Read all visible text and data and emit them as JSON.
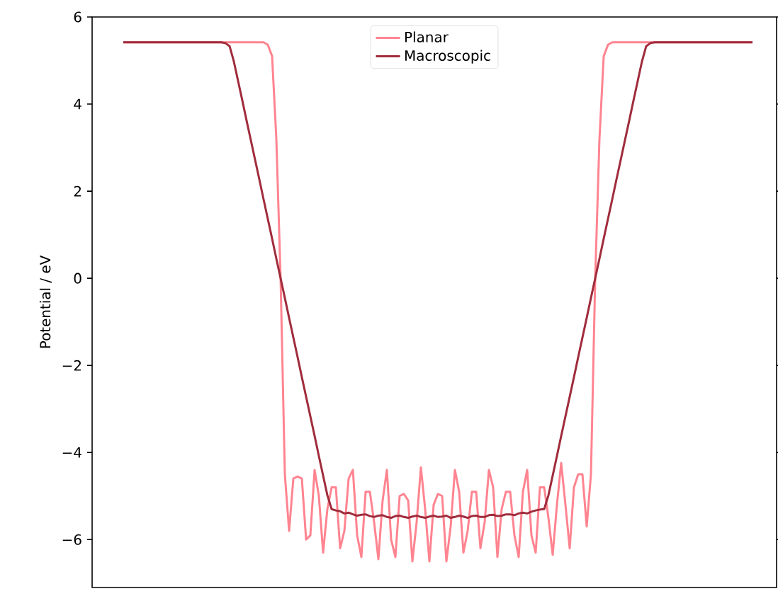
{
  "chart_data": {
    "type": "line",
    "ylabel": "Potential / eV",
    "categories": [
      null,
      null,
      null,
      null,
      null,
      null,
      null,
      null,
      null,
      null,
      null,
      null,
      null,
      null,
      null,
      null,
      null,
      null,
      null,
      null,
      null,
      null,
      null,
      null,
      null,
      null,
      null,
      null,
      null,
      null,
      null,
      null,
      null,
      null,
      null,
      null,
      null,
      null,
      null,
      null,
      null,
      null,
      null,
      null,
      null,
      null,
      null,
      null,
      null,
      null,
      null,
      null,
      null,
      null,
      null,
      null,
      null,
      null,
      null,
      null,
      null,
      null,
      null,
      null,
      null,
      null,
      null,
      null,
      null,
      null,
      null,
      null,
      null,
      null,
      null,
      null,
      null,
      null,
      null,
      null,
      null,
      null,
      null,
      null,
      null,
      null,
      null,
      null,
      null,
      null,
      null,
      null,
      null,
      null,
      null,
      null,
      null,
      null,
      null,
      null,
      null,
      null,
      null,
      null,
      null,
      null,
      null,
      null,
      null,
      null,
      null,
      null,
      null,
      null,
      null,
      null,
      null,
      null,
      null,
      null,
      null,
      null,
      null,
      null,
      null,
      null,
      null,
      null,
      null,
      null,
      null,
      null,
      null,
      null,
      null,
      null,
      null,
      null,
      null,
      null,
      null,
      null,
      null,
      null,
      null,
      null,
      null,
      null,
      null
    ],
    "series": [
      {
        "name": "Planar",
        "color": "#ff8490",
        "values": [
          5.42,
          5.42,
          5.42,
          5.42,
          5.42,
          5.42,
          5.42,
          5.42,
          5.42,
          5.42,
          5.42,
          5.42,
          5.42,
          5.42,
          5.42,
          5.42,
          5.42,
          5.42,
          5.42,
          5.42,
          5.42,
          5.42,
          5.42,
          5.42,
          5.42,
          5.42,
          5.42,
          5.42,
          5.42,
          5.42,
          5.42,
          5.42,
          5.42,
          5.42,
          5.36,
          5.1,
          3.2,
          0.0,
          -4.5,
          -5.8,
          -4.6,
          -4.55,
          -4.6,
          -6.0,
          -5.9,
          -4.4,
          -5.0,
          -6.3,
          -5.3,
          -4.8,
          -4.8,
          -6.2,
          -5.8,
          -4.6,
          -4.4,
          -5.9,
          -6.4,
          -4.9,
          -4.9,
          -5.6,
          -6.45,
          -5.1,
          -4.4,
          -6.0,
          -6.4,
          -5.0,
          -4.95,
          -5.1,
          -6.5,
          -5.6,
          -4.34,
          -5.3,
          -6.5,
          -5.2,
          -4.95,
          -5.0,
          -6.5,
          -5.7,
          -4.4,
          -4.9,
          -6.3,
          -5.8,
          -4.9,
          -4.9,
          -6.2,
          -5.6,
          -4.4,
          -4.8,
          -6.4,
          -5.3,
          -4.9,
          -4.9,
          -5.9,
          -6.4,
          -4.9,
          -4.4,
          -5.9,
          -6.3,
          -4.8,
          -4.8,
          -5.5,
          -6.35,
          -5.2,
          -4.24,
          -5.2,
          -6.2,
          -4.8,
          -4.5,
          -4.5,
          -5.7,
          -4.5,
          0.0,
          3.2,
          5.1,
          5.36,
          5.42,
          5.42,
          5.42,
          5.42,
          5.42,
          5.42,
          5.42,
          5.42,
          5.42,
          5.42,
          5.42,
          5.42,
          5.42,
          5.42,
          5.42,
          5.42,
          5.42,
          5.42,
          5.42,
          5.42,
          5.42,
          5.42,
          5.42,
          5.42,
          5.42,
          5.42,
          5.42,
          5.42,
          5.42,
          5.42,
          5.42,
          5.42,
          5.42,
          5.42
        ]
      },
      {
        "name": "Macroscopic",
        "color": "#a02c3c",
        "values": [
          5.42,
          5.42,
          5.42,
          5.42,
          5.42,
          5.42,
          5.42,
          5.42,
          5.42,
          5.42,
          5.42,
          5.42,
          5.42,
          5.42,
          5.42,
          5.42,
          5.42,
          5.42,
          5.42,
          5.42,
          5.42,
          5.42,
          5.42,
          5.42,
          5.4,
          5.33,
          4.98,
          4.53,
          4.08,
          3.62,
          3.17,
          2.72,
          2.27,
          1.81,
          1.36,
          0.91,
          0.45,
          0.0,
          -0.45,
          -0.91,
          -1.36,
          -1.81,
          -2.27,
          -2.72,
          -3.17,
          -3.62,
          -4.08,
          -4.53,
          -4.98,
          -5.3,
          -5.33,
          -5.35,
          -5.4,
          -5.38,
          -5.42,
          -5.45,
          -5.43,
          -5.42,
          -5.46,
          -5.48,
          -5.45,
          -5.44,
          -5.48,
          -5.5,
          -5.46,
          -5.45,
          -5.48,
          -5.5,
          -5.47,
          -5.45,
          -5.48,
          -5.5,
          -5.47,
          -5.45,
          -5.48,
          -5.47,
          -5.45,
          -5.5,
          -5.48,
          -5.45,
          -5.47,
          -5.5,
          -5.46,
          -5.45,
          -5.48,
          -5.48,
          -5.44,
          -5.43,
          -5.46,
          -5.45,
          -5.42,
          -5.42,
          -5.44,
          -5.4,
          -5.38,
          -5.4,
          -5.36,
          -5.33,
          -5.31,
          -5.3,
          -4.98,
          -4.53,
          -4.08,
          -3.62,
          -3.17,
          -2.72,
          -2.27,
          -1.81,
          -1.36,
          -0.91,
          -0.45,
          0.0,
          0.45,
          0.91,
          1.36,
          1.81,
          2.27,
          2.72,
          3.17,
          3.62,
          4.08,
          4.53,
          4.98,
          5.33,
          5.4,
          5.42,
          5.42,
          5.42,
          5.42,
          5.42,
          5.42,
          5.42,
          5.42,
          5.42,
          5.42,
          5.42,
          5.42,
          5.42,
          5.42,
          5.42,
          5.42,
          5.42,
          5.42,
          5.42,
          5.42,
          5.42,
          5.42,
          5.42,
          5.42
        ]
      }
    ],
    "ylim": [
      -7.1,
      6
    ],
    "yticks": [
      {
        "value": -6,
        "label": "−6"
      },
      {
        "value": -4,
        "label": "−4"
      },
      {
        "value": -2,
        "label": "−2"
      },
      0,
      2,
      4,
      6
    ],
    "tick_labels": "y",
    "legend": "top",
    "grid": false,
    "line_style": "solid",
    "marker": "none"
  }
}
